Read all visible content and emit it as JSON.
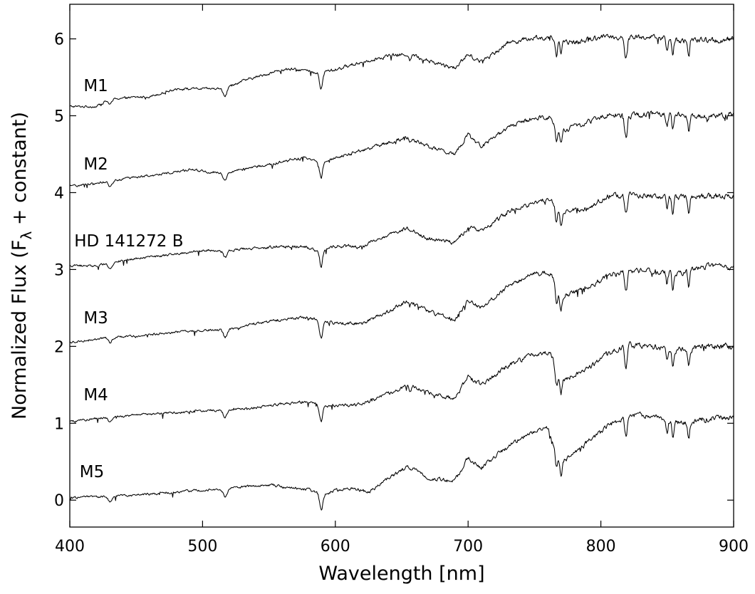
{
  "chart_data": {
    "type": "line",
    "xlabel": "Wavelength [nm]",
    "ylabel": "Normalized Flux (F",
    "ylabel_subscript": "λ",
    "ylabel_suffix": " + constant)",
    "xlim": [
      400,
      900
    ],
    "ylim": [
      -0.35,
      6.45
    ],
    "x_ticks": [
      400,
      500,
      600,
      700,
      800,
      900
    ],
    "x_tick_labels": [
      "400",
      "500",
      "600",
      "700",
      "800",
      "900"
    ],
    "y_ticks": [
      0,
      1,
      2,
      3,
      4,
      5,
      6
    ],
    "y_tick_labels": [
      "0",
      "1",
      "2",
      "3",
      "4",
      "5",
      "6"
    ],
    "grid": false,
    "line_color": "#000000",
    "series": [
      {
        "name": "M1",
        "label_pos": [
          405,
          5.32
        ],
        "offset": 5,
        "variant": 0,
        "points": [
          [
            400,
            0.12
          ],
          [
            420,
            0.12
          ],
          [
            430,
            0.22
          ],
          [
            460,
            0.25
          ],
          [
            480,
            0.35
          ],
          [
            495,
            0.35
          ],
          [
            515,
            0.35
          ],
          [
            530,
            0.45
          ],
          [
            560,
            0.6
          ],
          [
            575,
            0.6
          ],
          [
            585,
            0.55
          ],
          [
            600,
            0.6
          ],
          [
            620,
            0.7
          ],
          [
            640,
            0.78
          ],
          [
            655,
            0.8
          ],
          [
            670,
            0.72
          ],
          [
            690,
            0.62
          ],
          [
            700,
            0.8
          ],
          [
            710,
            0.7
          ],
          [
            730,
            0.95
          ],
          [
            750,
            1.02
          ],
          [
            765,
            1.0
          ],
          [
            780,
            0.95
          ],
          [
            800,
            1.03
          ],
          [
            820,
            1.02
          ],
          [
            840,
            1.02
          ],
          [
            860,
            0.98
          ],
          [
            880,
            0.98
          ],
          [
            900,
            0.98
          ]
        ]
      },
      {
        "name": "M2",
        "label_pos": [
          405,
          4.3
        ],
        "offset": 4,
        "variant": 1,
        "points": [
          [
            400,
            0.08
          ],
          [
            430,
            0.15
          ],
          [
            460,
            0.22
          ],
          [
            490,
            0.3
          ],
          [
            500,
            0.28
          ],
          [
            515,
            0.25
          ],
          [
            530,
            0.3
          ],
          [
            560,
            0.4
          ],
          [
            575,
            0.45
          ],
          [
            585,
            0.4
          ],
          [
            600,
            0.45
          ],
          [
            620,
            0.55
          ],
          [
            640,
            0.65
          ],
          [
            655,
            0.72
          ],
          [
            670,
            0.6
          ],
          [
            690,
            0.5
          ],
          [
            700,
            0.75
          ],
          [
            710,
            0.6
          ],
          [
            730,
            0.85
          ],
          [
            750,
            0.98
          ],
          [
            762,
            0.98
          ],
          [
            770,
            0.8
          ],
          [
            790,
            0.92
          ],
          [
            805,
            1.02
          ],
          [
            820,
            1.0
          ],
          [
            840,
            1.03
          ],
          [
            860,
            1.0
          ],
          [
            880,
            1.0
          ],
          [
            900,
            1.02
          ]
        ]
      },
      {
        "name": "HD 141272 B",
        "label_pos": [
          398,
          3.3
        ],
        "offset": 3,
        "variant": 2,
        "points": [
          [
            400,
            0.05
          ],
          [
            420,
            0.05
          ],
          [
            440,
            0.12
          ],
          [
            470,
            0.18
          ],
          [
            500,
            0.25
          ],
          [
            520,
            0.25
          ],
          [
            540,
            0.28
          ],
          [
            560,
            0.3
          ],
          [
            575,
            0.3
          ],
          [
            585,
            0.25
          ],
          [
            600,
            0.3
          ],
          [
            620,
            0.3
          ],
          [
            640,
            0.45
          ],
          [
            655,
            0.55
          ],
          [
            670,
            0.4
          ],
          [
            690,
            0.35
          ],
          [
            700,
            0.55
          ],
          [
            710,
            0.5
          ],
          [
            730,
            0.75
          ],
          [
            750,
            0.88
          ],
          [
            762,
            0.92
          ],
          [
            770,
            0.75
          ],
          [
            790,
            0.8
          ],
          [
            805,
            0.95
          ],
          [
            820,
            0.98
          ],
          [
            840,
            0.95
          ],
          [
            860,
            0.95
          ],
          [
            880,
            0.95
          ],
          [
            900,
            0.95
          ]
        ]
      },
      {
        "name": "M3",
        "label_pos": [
          405,
          2.3
        ],
        "offset": 2,
        "variant": 3,
        "points": [
          [
            400,
            0.05
          ],
          [
            430,
            0.12
          ],
          [
            460,
            0.15
          ],
          [
            490,
            0.2
          ],
          [
            520,
            0.22
          ],
          [
            540,
            0.3
          ],
          [
            560,
            0.35
          ],
          [
            575,
            0.38
          ],
          [
            585,
            0.35
          ],
          [
            600,
            0.3
          ],
          [
            620,
            0.3
          ],
          [
            640,
            0.45
          ],
          [
            655,
            0.6
          ],
          [
            670,
            0.45
          ],
          [
            690,
            0.35
          ],
          [
            700,
            0.6
          ],
          [
            710,
            0.5
          ],
          [
            730,
            0.78
          ],
          [
            750,
            0.95
          ],
          [
            762,
            0.95
          ],
          [
            770,
            0.65
          ],
          [
            790,
            0.75
          ],
          [
            805,
            0.92
          ],
          [
            820,
            0.98
          ],
          [
            840,
            0.98
          ],
          [
            860,
            0.95
          ],
          [
            880,
            1.05
          ],
          [
            900,
            1.02
          ]
        ]
      },
      {
        "name": "M4",
        "label_pos": [
          405,
          1.3
        ],
        "offset": 1,
        "variant": 4,
        "points": [
          [
            400,
            0.02
          ],
          [
            430,
            0.08
          ],
          [
            460,
            0.12
          ],
          [
            490,
            0.15
          ],
          [
            520,
            0.18
          ],
          [
            540,
            0.2
          ],
          [
            560,
            0.25
          ],
          [
            575,
            0.28
          ],
          [
            585,
            0.25
          ],
          [
            600,
            0.22
          ],
          [
            620,
            0.25
          ],
          [
            640,
            0.38
          ],
          [
            655,
            0.5
          ],
          [
            670,
            0.4
          ],
          [
            690,
            0.32
          ],
          [
            700,
            0.6
          ],
          [
            710,
            0.5
          ],
          [
            730,
            0.75
          ],
          [
            750,
            0.9
          ],
          [
            762,
            0.92
          ],
          [
            770,
            0.55
          ],
          [
            790,
            0.7
          ],
          [
            805,
            0.9
          ],
          [
            820,
            1.02
          ],
          [
            840,
            1.0
          ],
          [
            860,
            0.95
          ],
          [
            880,
            1.0
          ],
          [
            900,
            1.0
          ]
        ]
      },
      {
        "name": "M5",
        "label_pos": [
          402,
          0.3
        ],
        "offset": 0,
        "variant": 5,
        "points": [
          [
            400,
            0.03
          ],
          [
            430,
            0.05
          ],
          [
            460,
            0.08
          ],
          [
            490,
            0.12
          ],
          [
            520,
            0.15
          ],
          [
            545,
            0.2
          ],
          [
            560,
            0.18
          ],
          [
            575,
            0.15
          ],
          [
            590,
            0.08
          ],
          [
            600,
            0.12
          ],
          [
            615,
            0.15
          ],
          [
            625,
            0.1
          ],
          [
            640,
            0.28
          ],
          [
            655,
            0.45
          ],
          [
            670,
            0.28
          ],
          [
            690,
            0.25
          ],
          [
            700,
            0.55
          ],
          [
            710,
            0.42
          ],
          [
            730,
            0.7
          ],
          [
            750,
            0.9
          ],
          [
            760,
            0.95
          ],
          [
            770,
            0.48
          ],
          [
            790,
            0.75
          ],
          [
            805,
            0.95
          ],
          [
            820,
            1.12
          ],
          [
            840,
            1.08
          ],
          [
            860,
            1.0
          ],
          [
            880,
            1.05
          ],
          [
            900,
            1.08
          ]
        ]
      }
    ],
    "absorption_lines": [
      {
        "x": 430.5,
        "depth": 0.07,
        "width": 2
      },
      {
        "x": 517,
        "depth": 0.1,
        "width": 2
      },
      {
        "x": 589.3,
        "depth": 0.22,
        "width": 1.6
      },
      {
        "x": 656.3,
        "depth": 0.06,
        "width": 1.2
      },
      {
        "x": 766.5,
        "depth": 0.22,
        "width": 1.2
      },
      {
        "x": 769.9,
        "depth": 0.18,
        "width": 1.2
      },
      {
        "x": 818.3,
        "depth": 0.2,
        "width": 1.0
      },
      {
        "x": 819.5,
        "depth": 0.2,
        "width": 1.0
      },
      {
        "x": 849.8,
        "depth": 0.15,
        "width": 1.0
      },
      {
        "x": 854.2,
        "depth": 0.22,
        "width": 1.0
      },
      {
        "x": 866.2,
        "depth": 0.2,
        "width": 1.0
      }
    ]
  }
}
